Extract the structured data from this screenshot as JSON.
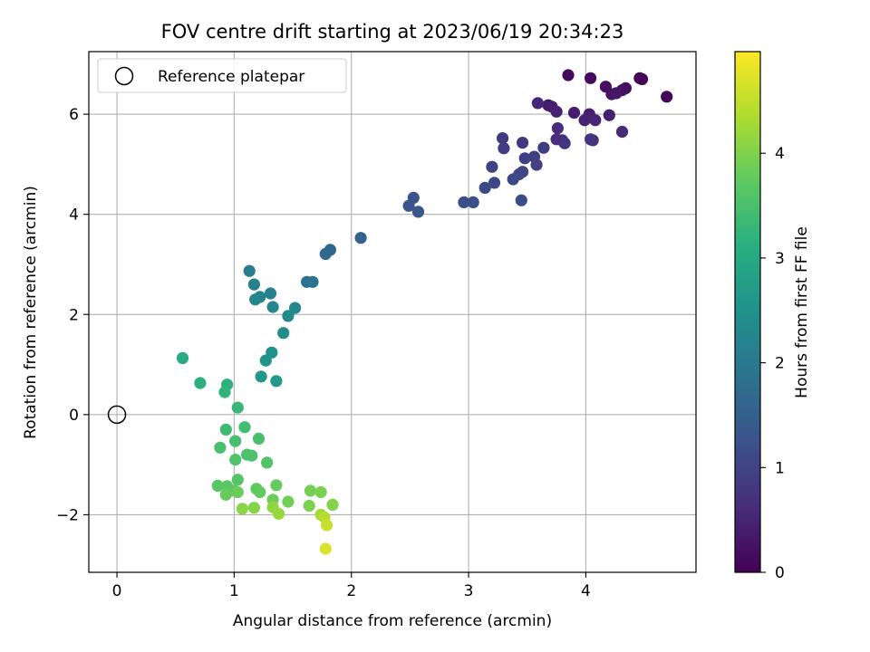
{
  "chart_data": {
    "type": "scatter",
    "title": "FOV centre drift starting at 2023/06/19 20:34:23",
    "xlabel": "Angular distance from reference (arcmin)",
    "ylabel": "Rotation from reference (arcmin)",
    "xlim": [
      -0.24,
      4.94
    ],
    "ylim": [
      -3.15,
      7.25
    ],
    "xticks": [
      0,
      1,
      2,
      3,
      4
    ],
    "yticks": [
      -2,
      0,
      2,
      4,
      6
    ],
    "grid": true,
    "legend": {
      "placement": "upper-left",
      "entries": [
        "Reference platepar"
      ]
    },
    "reference_point": {
      "x": 0,
      "y": 0,
      "label": "Reference platepar"
    },
    "colorbar": {
      "label": "Hours from first FF file",
      "colormap": "viridis",
      "range": [
        0,
        4.97
      ],
      "ticks": [
        0,
        1,
        2,
        3,
        4
      ]
    },
    "series": [
      {
        "color_variable": "Hours from first FF file",
        "points": [
          {
            "x": 4.46,
            "y": 6.72,
            "c": 0.0
          },
          {
            "x": 4.48,
            "y": 6.7,
            "c": 0.05
          },
          {
            "x": 4.69,
            "y": 6.35,
            "c": 0.08
          },
          {
            "x": 3.85,
            "y": 6.78,
            "c": 0.12
          },
          {
            "x": 4.04,
            "y": 6.72,
            "c": 0.15
          },
          {
            "x": 4.34,
            "y": 6.52,
            "c": 0.18
          },
          {
            "x": 4.17,
            "y": 6.55,
            "c": 0.2
          },
          {
            "x": 4.31,
            "y": 6.48,
            "c": 0.22
          },
          {
            "x": 4.22,
            "y": 6.4,
            "c": 0.25
          },
          {
            "x": 4.26,
            "y": 6.42,
            "c": 0.28
          },
          {
            "x": 3.68,
            "y": 6.18,
            "c": 0.35
          },
          {
            "x": 3.71,
            "y": 6.15,
            "c": 0.38
          },
          {
            "x": 3.9,
            "y": 6.03,
            "c": 0.4
          },
          {
            "x": 4.03,
            "y": 6.0,
            "c": 0.42
          },
          {
            "x": 4.2,
            "y": 5.98,
            "c": 0.45
          },
          {
            "x": 3.75,
            "y": 6.05,
            "c": 0.48
          },
          {
            "x": 3.99,
            "y": 5.88,
            "c": 0.5
          },
          {
            "x": 4.08,
            "y": 5.88,
            "c": 0.52
          },
          {
            "x": 3.59,
            "y": 6.22,
            "c": 0.55
          },
          {
            "x": 4.31,
            "y": 5.65,
            "c": 0.58
          },
          {
            "x": 3.76,
            "y": 5.72,
            "c": 0.62
          },
          {
            "x": 3.75,
            "y": 5.5,
            "c": 0.65
          },
          {
            "x": 3.8,
            "y": 5.48,
            "c": 0.68
          },
          {
            "x": 4.04,
            "y": 5.5,
            "c": 0.7
          },
          {
            "x": 4.06,
            "y": 5.48,
            "c": 0.72
          },
          {
            "x": 3.82,
            "y": 5.42,
            "c": 0.75
          },
          {
            "x": 3.46,
            "y": 5.43,
            "c": 0.8
          },
          {
            "x": 3.29,
            "y": 5.52,
            "c": 0.82
          },
          {
            "x": 3.3,
            "y": 5.32,
            "c": 0.85
          },
          {
            "x": 3.64,
            "y": 5.33,
            "c": 0.88
          },
          {
            "x": 3.56,
            "y": 5.15,
            "c": 0.9
          },
          {
            "x": 3.48,
            "y": 5.12,
            "c": 0.92
          },
          {
            "x": 3.58,
            "y": 4.99,
            "c": 0.95
          },
          {
            "x": 3.2,
            "y": 4.95,
            "c": 0.98
          },
          {
            "x": 3.46,
            "y": 4.85,
            "c": 1.0
          },
          {
            "x": 3.43,
            "y": 4.8,
            "c": 1.02
          },
          {
            "x": 3.38,
            "y": 4.7,
            "c": 1.05
          },
          {
            "x": 3.22,
            "y": 4.63,
            "c": 1.08
          },
          {
            "x": 3.14,
            "y": 4.53,
            "c": 1.1
          },
          {
            "x": 3.45,
            "y": 4.28,
            "c": 1.12
          },
          {
            "x": 2.96,
            "y": 4.24,
            "c": 1.18
          },
          {
            "x": 3.04,
            "y": 4.24,
            "c": 1.2
          },
          {
            "x": 2.53,
            "y": 4.33,
            "c": 1.28
          },
          {
            "x": 2.49,
            "y": 4.17,
            "c": 1.3
          },
          {
            "x": 2.57,
            "y": 4.05,
            "c": 1.33
          },
          {
            "x": 2.08,
            "y": 3.53,
            "c": 1.55
          },
          {
            "x": 1.82,
            "y": 3.29,
            "c": 1.65
          },
          {
            "x": 1.78,
            "y": 3.21,
            "c": 1.68
          },
          {
            "x": 1.62,
            "y": 2.65,
            "c": 1.85
          },
          {
            "x": 1.67,
            "y": 2.65,
            "c": 1.88
          },
          {
            "x": 1.13,
            "y": 2.87,
            "c": 2.1
          },
          {
            "x": 1.17,
            "y": 2.6,
            "c": 2.15
          },
          {
            "x": 1.31,
            "y": 2.42,
            "c": 2.2
          },
          {
            "x": 1.22,
            "y": 2.35,
            "c": 2.22
          },
          {
            "x": 1.18,
            "y": 2.3,
            "c": 2.25
          },
          {
            "x": 1.33,
            "y": 2.15,
            "c": 2.28
          },
          {
            "x": 1.52,
            "y": 2.13,
            "c": 2.3
          },
          {
            "x": 1.46,
            "y": 1.97,
            "c": 2.33
          },
          {
            "x": 1.42,
            "y": 1.63,
            "c": 2.4
          },
          {
            "x": 1.32,
            "y": 1.24,
            "c": 2.48
          },
          {
            "x": 1.27,
            "y": 1.08,
            "c": 2.55
          },
          {
            "x": 1.23,
            "y": 0.76,
            "c": 2.62
          },
          {
            "x": 1.36,
            "y": 0.67,
            "c": 2.65
          },
          {
            "x": 0.56,
            "y": 1.13,
            "c": 3.05
          },
          {
            "x": 0.71,
            "y": 0.63,
            "c": 3.15
          },
          {
            "x": 0.94,
            "y": 0.6,
            "c": 3.18
          },
          {
            "x": 0.92,
            "y": 0.45,
            "c": 3.22
          },
          {
            "x": 1.03,
            "y": 0.14,
            "c": 3.3
          },
          {
            "x": 0.93,
            "y": -0.3,
            "c": 3.38
          },
          {
            "x": 1.09,
            "y": -0.25,
            "c": 3.42
          },
          {
            "x": 1.01,
            "y": -0.53,
            "c": 3.45
          },
          {
            "x": 1.21,
            "y": -0.48,
            "c": 3.48
          },
          {
            "x": 0.88,
            "y": -0.66,
            "c": 3.5
          },
          {
            "x": 1.11,
            "y": -0.8,
            "c": 3.52
          },
          {
            "x": 1.15,
            "y": -0.82,
            "c": 3.55
          },
          {
            "x": 1.01,
            "y": -0.9,
            "c": 3.58
          },
          {
            "x": 1.28,
            "y": -0.96,
            "c": 3.6
          },
          {
            "x": 1.03,
            "y": -1.3,
            "c": 3.62
          },
          {
            "x": 0.86,
            "y": -1.42,
            "c": 3.65
          },
          {
            "x": 0.94,
            "y": -1.43,
            "c": 3.68
          },
          {
            "x": 1.0,
            "y": -1.52,
            "c": 3.7
          },
          {
            "x": 1.19,
            "y": -1.48,
            "c": 3.72
          },
          {
            "x": 1.22,
            "y": -1.55,
            "c": 3.75
          },
          {
            "x": 1.36,
            "y": -1.41,
            "c": 3.78
          },
          {
            "x": 0.93,
            "y": -1.6,
            "c": 3.8
          },
          {
            "x": 1.03,
            "y": -1.55,
            "c": 3.82
          },
          {
            "x": 1.33,
            "y": -1.7,
            "c": 3.85
          },
          {
            "x": 1.46,
            "y": -1.74,
            "c": 3.88
          },
          {
            "x": 1.65,
            "y": -1.52,
            "c": 3.92
          },
          {
            "x": 1.74,
            "y": -1.55,
            "c": 3.95
          },
          {
            "x": 1.64,
            "y": -1.82,
            "c": 3.98
          },
          {
            "x": 1.84,
            "y": -1.8,
            "c": 4.02
          },
          {
            "x": 1.17,
            "y": -1.86,
            "c": 4.05
          },
          {
            "x": 1.07,
            "y": -1.88,
            "c": 4.08
          },
          {
            "x": 1.33,
            "y": -1.85,
            "c": 4.12
          },
          {
            "x": 1.38,
            "y": -1.98,
            "c": 4.18
          },
          {
            "x": 1.74,
            "y": -2.0,
            "c": 4.3
          },
          {
            "x": 1.77,
            "y": -2.05,
            "c": 4.4
          },
          {
            "x": 1.79,
            "y": -2.21,
            "c": 4.55
          },
          {
            "x": 1.78,
            "y": -2.68,
            "c": 4.7
          }
        ]
      }
    ]
  }
}
